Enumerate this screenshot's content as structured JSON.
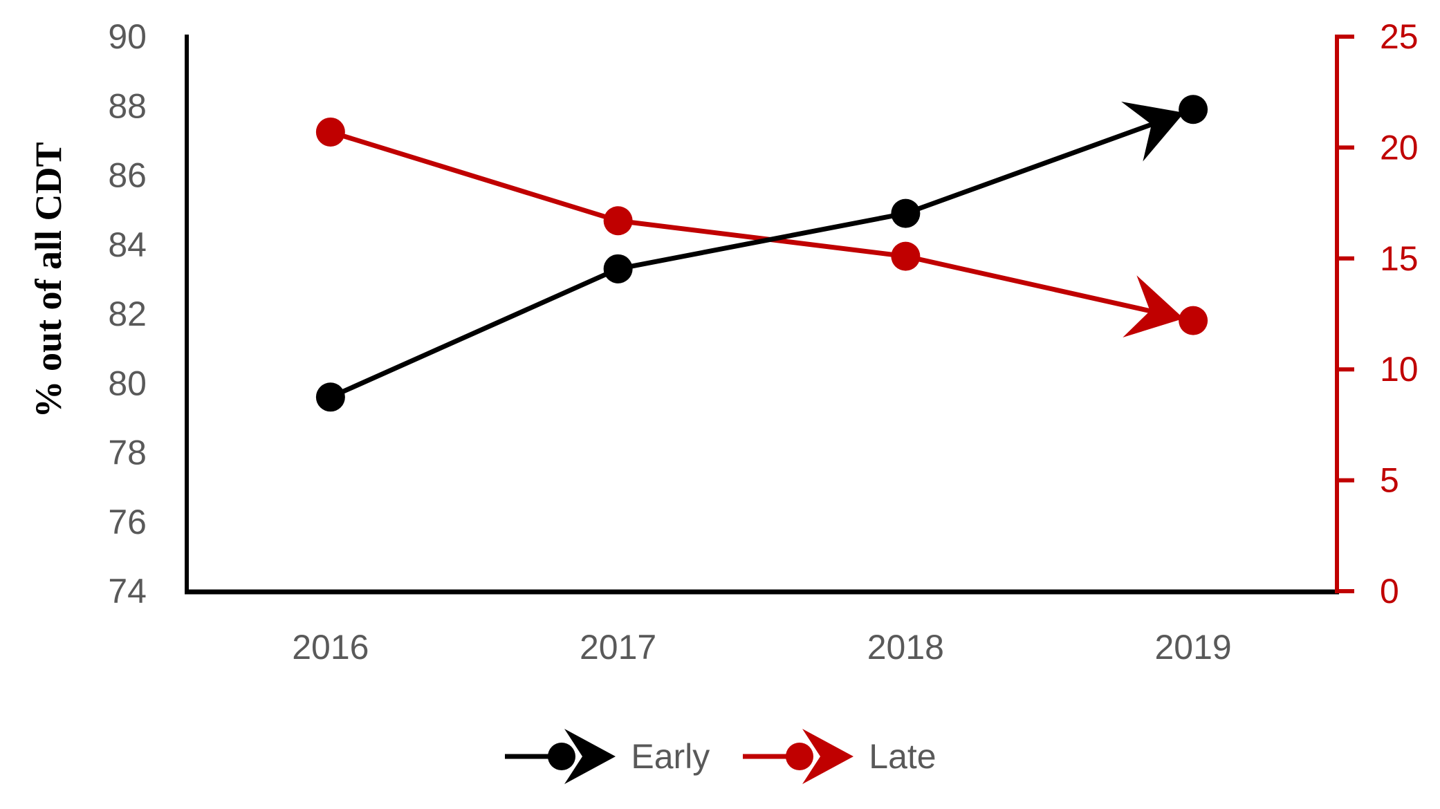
{
  "page": {
    "background": "#ffffff"
  },
  "chart_data": {
    "type": "line",
    "title": "",
    "categories": [
      "2016",
      "2017",
      "2018",
      "2019"
    ],
    "series": [
      {
        "name": "Early",
        "axis": "left",
        "color": "#000000",
        "marker": "circle",
        "arrow_end": true,
        "values": [
          79.6,
          83.3,
          84.9,
          87.9
        ]
      },
      {
        "name": "Late",
        "axis": "right",
        "color": "#C00000",
        "marker": "circle",
        "arrow_end": true,
        "values": [
          20.7,
          16.7,
          15.1,
          12.2
        ]
      }
    ],
    "left_axis": {
      "label": "% out of all CDT",
      "min": 74,
      "max": 90,
      "ticks": [
        90,
        88,
        86,
        84,
        82,
        80,
        78,
        76,
        74
      ],
      "axis_color": "#000000",
      "tick_label_color": "#595959"
    },
    "right_axis": {
      "label": "",
      "min": 0,
      "max": 25,
      "ticks": [
        25,
        20,
        15,
        10,
        5,
        0
      ],
      "axis_color": "#C00000",
      "tick_label_color": "#C00000"
    },
    "x_axis": {
      "label": "",
      "tick_label_color": "#595959",
      "axis_color": "#000000"
    },
    "legend": {
      "position": "bottom",
      "entries": [
        "Early",
        "Late"
      ]
    },
    "grid": false
  }
}
